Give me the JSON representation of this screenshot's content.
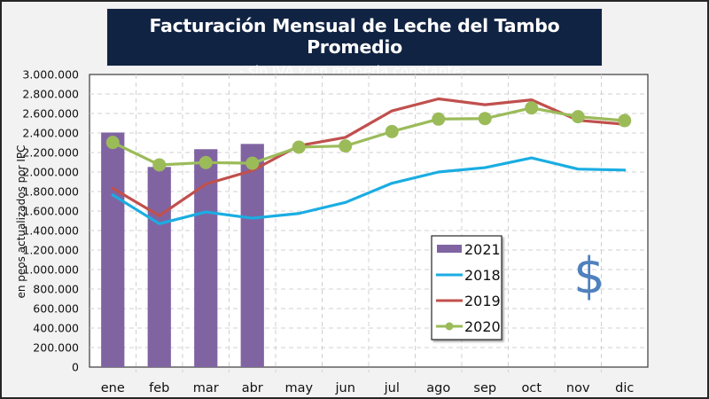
{
  "title": {
    "main": "Facturación Mensual de Leche del Tambo Promedio",
    "subtitle": "- sin IVA y en moneda constante -"
  },
  "decoration": {
    "currency_symbol": "$",
    "currency_color": "#4f81bd"
  },
  "chart_data": {
    "type": "bar+line",
    "title": "Facturación Mensual de Leche del Tambo Promedio",
    "subtitle": "- sin IVA y en moneda constante -",
    "xlabel": "",
    "ylabel": "en peos actualizados por IPC",
    "ylim": [
      0,
      3000000
    ],
    "ytick_step": 200000,
    "yticks": [
      "0",
      "200.000",
      "400.000",
      "600.000",
      "800.000",
      "1.000.000",
      "1.200.000",
      "1.400.000",
      "1.600.000",
      "1.800.000",
      "2.000.000",
      "2.200.000",
      "2.400.000",
      "2.600.000",
      "2.800.000",
      "3.000.000"
    ],
    "grid": true,
    "legend_position": "bottom-center",
    "categories": [
      "ene",
      "feb",
      "mar",
      "abr",
      "may",
      "jun",
      "jul",
      "ago",
      "sep",
      "oct",
      "nov",
      "dic"
    ],
    "series": [
      {
        "name": "2021",
        "kind": "bar",
        "color": "#8064a2",
        "values": [
          2405000,
          2052000,
          2234000,
          2288000,
          null,
          null,
          null,
          null,
          null,
          null,
          null,
          null
        ]
      },
      {
        "name": "2018",
        "kind": "line",
        "color": "#1aade2",
        "marker": false,
        "values": [
          1764000,
          1470000,
          1590000,
          1527000,
          1575000,
          1688000,
          1885000,
          2000000,
          2045000,
          2145000,
          2030000,
          2020000
        ]
      },
      {
        "name": "2019",
        "kind": "line",
        "color": "#c0504d",
        "marker": false,
        "values": [
          1833000,
          1552000,
          1876000,
          2015000,
          2270000,
          2355000,
          2627000,
          2750000,
          2690000,
          2740000,
          2530000,
          2490000
        ]
      },
      {
        "name": "2020",
        "kind": "line",
        "color": "#9bbb59",
        "marker": true,
        "values": [
          2303000,
          2073000,
          2097000,
          2090000,
          2255000,
          2267000,
          2415000,
          2543000,
          2548000,
          2657000,
          2567000,
          2527000
        ]
      }
    ],
    "legend_order": [
      "2021",
      "2018",
      "2019",
      "2020"
    ]
  }
}
